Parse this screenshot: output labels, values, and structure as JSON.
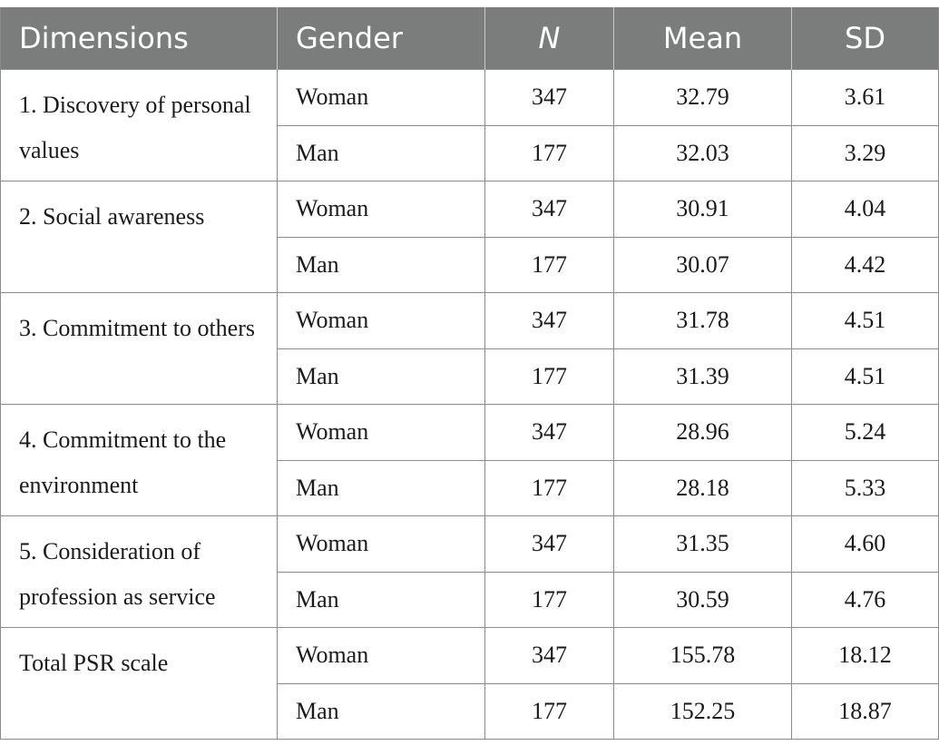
{
  "header": {
    "dimensions": "Dimensions",
    "gender": "Gender",
    "n": "N",
    "mean": "Mean",
    "sd": "SD"
  },
  "rows": [
    {
      "dimension": "1. Discovery of personal values",
      "entries": [
        {
          "gender": "Woman",
          "n": "347",
          "mean": "32.79",
          "sd": "3.61"
        },
        {
          "gender": "Man",
          "n": "177",
          "mean": "32.03",
          "sd": "3.29"
        }
      ]
    },
    {
      "dimension": "2. Social awareness",
      "entries": [
        {
          "gender": "Woman",
          "n": "347",
          "mean": "30.91",
          "sd": "4.04"
        },
        {
          "gender": "Man",
          "n": "177",
          "mean": "30.07",
          "sd": "4.42"
        }
      ]
    },
    {
      "dimension": "3. Commitment to others",
      "entries": [
        {
          "gender": "Woman",
          "n": "347",
          "mean": "31.78",
          "sd": "4.51"
        },
        {
          "gender": "Man",
          "n": "177",
          "mean": "31.39",
          "sd": "4.51"
        }
      ]
    },
    {
      "dimension": "4. Commitment to the environment",
      "entries": [
        {
          "gender": "Woman",
          "n": "347",
          "mean": "28.96",
          "sd": "5.24"
        },
        {
          "gender": "Man",
          "n": "177",
          "mean": "28.18",
          "sd": "5.33"
        }
      ]
    },
    {
      "dimension": "5. Consideration of profession as service",
      "entries": [
        {
          "gender": "Woman",
          "n": "347",
          "mean": "31.35",
          "sd": "4.60"
        },
        {
          "gender": "Man",
          "n": "177",
          "mean": "30.59",
          "sd": "4.76"
        }
      ]
    },
    {
      "dimension": "Total PSR scale",
      "entries": [
        {
          "gender": "Woman",
          "n": "347",
          "mean": "155.78",
          "sd": "18.12"
        },
        {
          "gender": "Man",
          "n": "177",
          "mean": "152.25",
          "sd": "18.87"
        }
      ]
    }
  ]
}
